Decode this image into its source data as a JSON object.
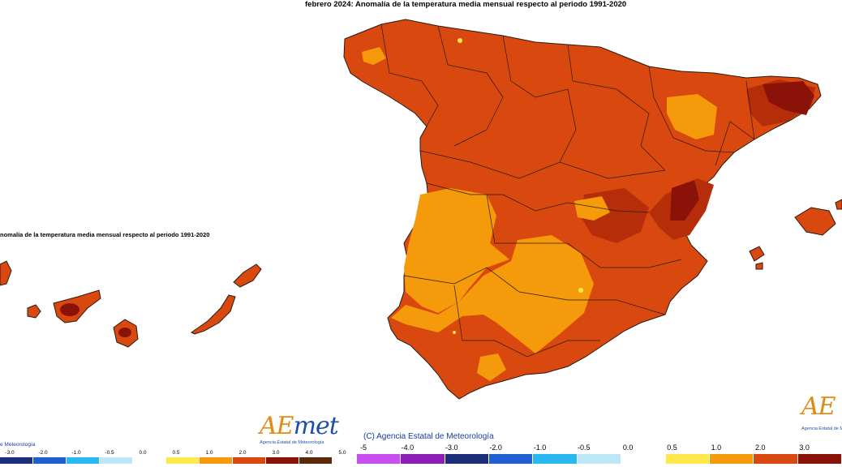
{
  "title": "febrero 2024: Anomalía de la temperatura media mensual respecto al periodo 1991-2020",
  "inset_title": "nomalía de la temperatura media mensual respecto al periodo 1991-2020",
  "credit": "(C) Agencia Estatal de Meteorología",
  "inset_credit": "e Meteorología",
  "logo": {
    "text_a": "A",
    "text_e": "E",
    "text_rest": "met",
    "subtitle": "Agencia Estatal de Meteorología"
  },
  "colors": {
    "anom_2_3": "#d9480f",
    "anom_3_4": "#b52d09",
    "anom_4_5": "#8a1208",
    "anom_1_2": "#f59b0b",
    "anom_05_1": "#ffe84a",
    "sea": "#ffffff",
    "border": "#2a1a10"
  },
  "legend": {
    "ticks": [
      "-5",
      "-4.0",
      "-3.0",
      "-2.0",
      "-1.0",
      "-0.5",
      "0.0",
      "0.5",
      "1.0",
      "2.0",
      "3.0"
    ],
    "colors": [
      "#c84ff0",
      "#8b1fb5",
      "#1c2e7a",
      "#1f5fd0",
      "#2ab8f0",
      "#bde6f7",
      "#ffffff",
      "#ffe84a",
      "#f59b0b",
      "#d9480f",
      "#8a1208"
    ]
  },
  "inset_legend": {
    "ticks": [
      "-3.0",
      "-2.0",
      "-1.0",
      "-0.5",
      "0.0",
      "0.5",
      "1.0",
      "2.0",
      "3.0",
      "4.0",
      "5.0"
    ],
    "colors": [
      "#1c2e7a",
      "#1f5fd0",
      "#2ab8f0",
      "#bde6f7",
      "#ffffff",
      "#ffe84a",
      "#f59b0b",
      "#d9480f",
      "#8a1208",
      "#5a2a0a"
    ]
  }
}
